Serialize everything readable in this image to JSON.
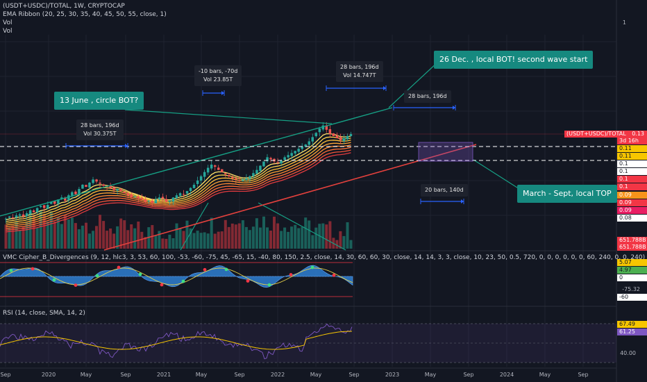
{
  "header": {
    "symbol_line": "(USDT+USDC)/TOTAL, 1W, CRYPTOCAP",
    "ema_line": "EMA Ribbon (20, 25, 30, 35, 40, 45, 50, 55, close, 1)",
    "vol1": "Vol",
    "vol2": "Vol",
    "scale_top": "1"
  },
  "callouts": {
    "june": "13 June , circle BOT?",
    "dec": "26 Dec. , local BOT! second wave start",
    "march": "March - Sept, local TOP"
  },
  "measures": {
    "m1_line1": "28 bars, 196d",
    "m1_line2": "Vol 30.375T",
    "m2_line1": "-10 bars, -70d",
    "m2_line2": "Vol 23.85T",
    "m3_line1": "28 bars, 196d",
    "m3_line2": "Vol 14.747T",
    "m4_line1": "28 bars, 196d",
    "m5_line1": "20 bars, 140d"
  },
  "price_scale": {
    "symbol_tag": "(USDT+USDC)/TOTAL",
    "price": "0.13",
    "countdown": "3d 16h",
    "levels": [
      "0.11",
      "0.11",
      "0.1",
      "0.1",
      "0.1",
      "0.1",
      "0.09",
      "0.09",
      "0.09",
      "0.08"
    ],
    "vol_a": "651.788B",
    "vol_b": "651.788B"
  },
  "wavetrend": {
    "title": "VMC Cipher_B_Divergences (9, 12, hlc3, 3, 53, 60, 100, -53, -60, -75, 45, -65, 15, -40, 80, 150, 2.5, close, 14, 30, 60, 60, 30, close, 14, 14, 3, 3, close, 10, 23, 50, 0.5, 720, 0, 0, 0, 0, 0, 0, 60, 240, 0, 0, 240)",
    "v1": "5.07",
    "v2": "4.97",
    "v3": "0",
    "v4": "-60",
    "v5": "-75.32"
  },
  "rsi": {
    "title": "RSI (14, close, SMA, 14, 2)",
    "v1": "67.49",
    "v2": "61.25",
    "tick": "40.00"
  },
  "chart_data": {
    "type": "candlestick",
    "title": "(USDT+USDC)/TOTAL, 1W, CRYPTOCAP",
    "x_ticks": [
      "Sep",
      "2020",
      "May",
      "Sep",
      "2021",
      "May",
      "Sep",
      "2022",
      "May",
      "Sep",
      "2023",
      "May",
      "Sep",
      "2024",
      "May",
      "Sep"
    ],
    "last_price": 0.13,
    "horizontal_levels": [
      0.11,
      0.1
    ],
    "close": [
      0.05,
      0.052,
      0.051,
      0.053,
      0.054,
      0.052,
      0.055,
      0.058,
      0.056,
      0.06,
      0.062,
      0.06,
      0.063,
      0.066,
      0.064,
      0.068,
      0.07,
      0.067,
      0.072,
      0.075,
      0.073,
      0.078,
      0.082,
      0.08,
      0.084,
      0.087,
      0.085,
      0.083,
      0.081,
      0.08,
      0.079,
      0.077,
      0.078,
      0.076,
      0.074,
      0.072,
      0.07,
      0.071,
      0.069,
      0.068,
      0.066,
      0.067,
      0.065,
      0.068,
      0.07,
      0.069,
      0.066,
      0.067,
      0.07,
      0.072,
      0.074,
      0.073,
      0.076,
      0.079,
      0.082,
      0.086,
      0.09,
      0.094,
      0.098,
      0.101,
      0.099,
      0.096,
      0.094,
      0.092,
      0.09,
      0.088,
      0.087,
      0.086,
      0.087,
      0.088,
      0.09,
      0.093,
      0.096,
      0.1,
      0.104,
      0.108,
      0.106,
      0.104,
      0.103,
      0.105,
      0.108,
      0.11,
      0.112,
      0.114,
      0.116,
      0.118,
      0.12,
      0.123,
      0.127,
      0.131,
      0.135,
      0.138,
      0.134,
      0.13,
      0.128,
      0.126,
      0.124,
      0.126,
      0.128,
      0.13
    ],
    "rsi_levels": [
      70,
      50,
      30
    ],
    "rsi_values": [
      67.49,
      61.25
    ]
  }
}
